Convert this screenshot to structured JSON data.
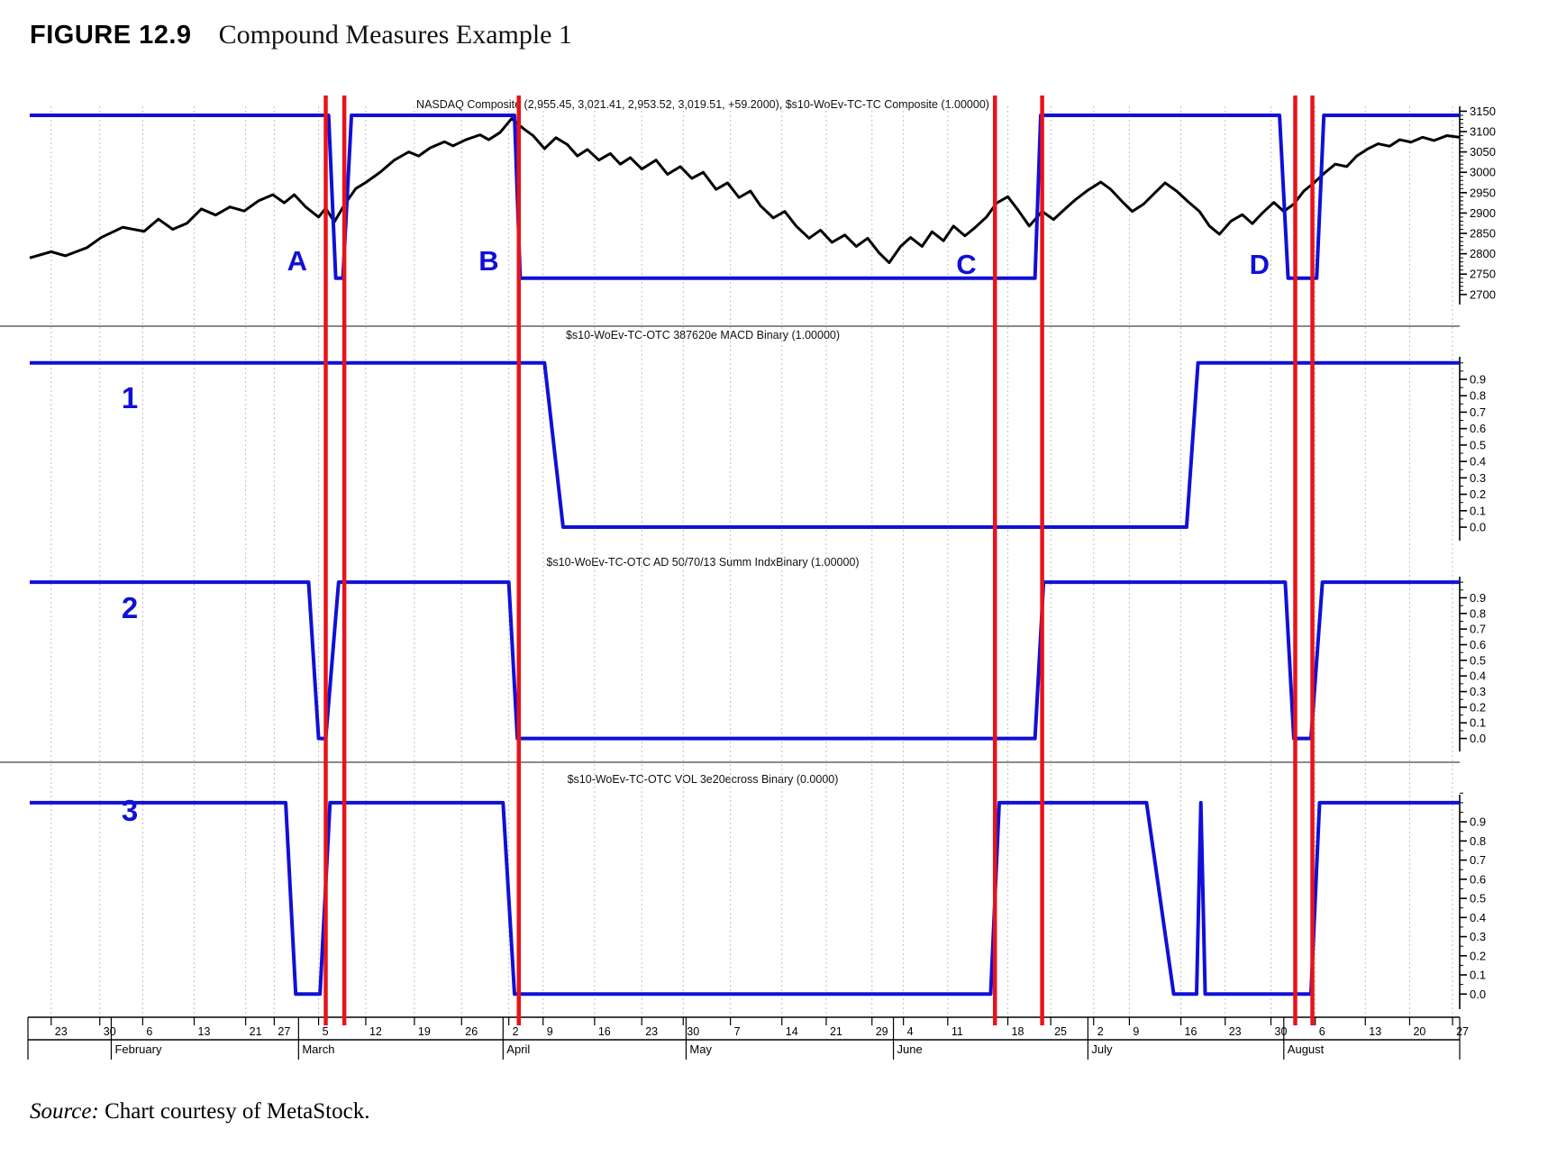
{
  "title": {
    "figure_label": "FIGURE 12.9",
    "text": "Compound Measures Example 1"
  },
  "source": {
    "prefix": "Source:",
    "text": " Chart courtesy of MetaStock."
  },
  "colors": {
    "line_blue": "#1010d6",
    "line_red": "#e8131a",
    "price_black": "#000000",
    "grid_gray": "#bfbfbf",
    "separator": "#444444",
    "axis_black": "#000000"
  },
  "chart_data": {
    "type": "line",
    "panels": [
      {
        "id": "price",
        "label": "NASDAQ Composite (2,955.45, 3,021.41, 2,953.52, 3,019.51, +59.2000), $s10-WoEv-TC-TC Composite  (1.00000)",
        "marker": "",
        "ylim": [
          2700,
          3150
        ],
        "price_ticks": [
          3150,
          3100,
          3050,
          3000,
          2950,
          2900,
          2850,
          2800,
          2750,
          2700
        ],
        "composite_on_value": 3140,
        "composite_off_value": 2740,
        "nasdaq": [
          [
            0,
            2790
          ],
          [
            1.5,
            2805
          ],
          [
            2.5,
            2795
          ],
          [
            4,
            2815
          ],
          [
            5,
            2840
          ],
          [
            6.5,
            2865
          ],
          [
            8,
            2855
          ],
          [
            9,
            2885
          ],
          [
            10,
            2860
          ],
          [
            11,
            2875
          ],
          [
            12,
            2910
          ],
          [
            13,
            2895
          ],
          [
            14,
            2915
          ],
          [
            15,
            2905
          ],
          [
            16,
            2930
          ],
          [
            17,
            2945
          ],
          [
            17.8,
            2925
          ],
          [
            18.5,
            2945
          ],
          [
            19.3,
            2915
          ],
          [
            20.2,
            2890
          ],
          [
            20.7,
            2912
          ],
          [
            21.3,
            2878
          ],
          [
            22,
            2920
          ],
          [
            22.8,
            2960
          ],
          [
            23.5,
            2975
          ],
          [
            24.5,
            3000
          ],
          [
            25.5,
            3030
          ],
          [
            26.5,
            3050
          ],
          [
            27.2,
            3040
          ],
          [
            28,
            3060
          ],
          [
            29,
            3075
          ],
          [
            29.6,
            3065
          ],
          [
            30.5,
            3080
          ],
          [
            31.5,
            3092
          ],
          [
            32.1,
            3080
          ],
          [
            32.9,
            3098
          ],
          [
            33.7,
            3132
          ],
          [
            34.5,
            3108
          ],
          [
            35.2,
            3090
          ],
          [
            36,
            3058
          ],
          [
            36.8,
            3085
          ],
          [
            37.6,
            3068
          ],
          [
            38.3,
            3040
          ],
          [
            39,
            3056
          ],
          [
            39.8,
            3030
          ],
          [
            40.6,
            3046
          ],
          [
            41.3,
            3020
          ],
          [
            42,
            3036
          ],
          [
            42.8,
            3008
          ],
          [
            43.8,
            3030
          ],
          [
            44.6,
            2995
          ],
          [
            45.5,
            3014
          ],
          [
            46.3,
            2985
          ],
          [
            47.1,
            3000
          ],
          [
            48,
            2958
          ],
          [
            48.8,
            2974
          ],
          [
            49.6,
            2938
          ],
          [
            50.4,
            2954
          ],
          [
            51.1,
            2918
          ],
          [
            52,
            2888
          ],
          [
            52.8,
            2904
          ],
          [
            53.6,
            2868
          ],
          [
            54.5,
            2838
          ],
          [
            55.3,
            2858
          ],
          [
            56.1,
            2828
          ],
          [
            57,
            2846
          ],
          [
            57.8,
            2818
          ],
          [
            58.6,
            2838
          ],
          [
            59.4,
            2802
          ],
          [
            60.1,
            2778
          ],
          [
            60.9,
            2818
          ],
          [
            61.6,
            2840
          ],
          [
            62.4,
            2818
          ],
          [
            63.1,
            2854
          ],
          [
            63.9,
            2832
          ],
          [
            64.6,
            2868
          ],
          [
            65.4,
            2844
          ],
          [
            66.1,
            2864
          ],
          [
            66.9,
            2890
          ],
          [
            67.6,
            2924
          ],
          [
            68.4,
            2940
          ],
          [
            69.1,
            2908
          ],
          [
            69.9,
            2868
          ],
          [
            70.8,
            2904
          ],
          [
            71.6,
            2884
          ],
          [
            72.4,
            2910
          ],
          [
            73.1,
            2932
          ],
          [
            74,
            2956
          ],
          [
            74.9,
            2976
          ],
          [
            75.6,
            2958
          ],
          [
            76.4,
            2928
          ],
          [
            77.1,
            2904
          ],
          [
            77.9,
            2922
          ],
          [
            78.7,
            2950
          ],
          [
            79.4,
            2974
          ],
          [
            80.2,
            2954
          ],
          [
            81,
            2928
          ],
          [
            81.8,
            2904
          ],
          [
            82.5,
            2868
          ],
          [
            83.2,
            2848
          ],
          [
            84,
            2880
          ],
          [
            84.8,
            2896
          ],
          [
            85.5,
            2874
          ],
          [
            86.2,
            2900
          ],
          [
            87,
            2926
          ],
          [
            87.7,
            2904
          ],
          [
            88.4,
            2922
          ],
          [
            89.1,
            2954
          ],
          [
            89.8,
            2974
          ],
          [
            90.6,
            3000
          ],
          [
            91.3,
            3020
          ],
          [
            92.1,
            3014
          ],
          [
            92.8,
            3040
          ],
          [
            93.6,
            3058
          ],
          [
            94.3,
            3070
          ],
          [
            95.1,
            3064
          ],
          [
            95.8,
            3080
          ],
          [
            96.6,
            3074
          ],
          [
            97.4,
            3086
          ],
          [
            98.2,
            3078
          ],
          [
            99.1,
            3090
          ],
          [
            100,
            3086
          ]
        ],
        "composite_steps": [
          [
            0,
            1
          ],
          [
            20.9,
            1
          ],
          [
            21.4,
            0
          ],
          [
            21.9,
            0
          ],
          [
            22.5,
            1
          ],
          [
            33.9,
            1
          ],
          [
            34.3,
            0
          ],
          [
            70.3,
            0
          ],
          [
            70.7,
            1
          ],
          [
            87.4,
            1
          ],
          [
            88.0,
            0
          ],
          [
            90.0,
            0
          ],
          [
            90.5,
            1
          ],
          [
            100,
            1
          ]
        ]
      },
      {
        "id": "macd",
        "label": "$s10-WoEv-TC-OTC 387620e MACD Binary  (1.00000)",
        "marker": "1",
        "ylim": [
          0.0,
          1.0
        ],
        "steps": [
          [
            0,
            1
          ],
          [
            36.0,
            1
          ],
          [
            37.3,
            0
          ],
          [
            80.9,
            0
          ],
          [
            81.7,
            1
          ],
          [
            100,
            1
          ]
        ]
      },
      {
        "id": "ad_summ",
        "label": "$s10-WoEv-TC-OTC AD 50/70/13 Summ IndxBinary  (1.00000)",
        "marker": "2",
        "ylim": [
          0.0,
          1.0
        ],
        "steps": [
          [
            0,
            1
          ],
          [
            19.5,
            1
          ],
          [
            20.2,
            0
          ],
          [
            20.7,
            0
          ],
          [
            21.6,
            1
          ],
          [
            33.5,
            1
          ],
          [
            34.1,
            0
          ],
          [
            70.3,
            0
          ],
          [
            70.9,
            1
          ],
          [
            87.8,
            1
          ],
          [
            88.4,
            0
          ],
          [
            89.6,
            0
          ],
          [
            90.4,
            1
          ],
          [
            100,
            1
          ]
        ]
      },
      {
        "id": "vol",
        "label": "$s10-WoEv-TC-OTC VOL 3e20ecross Binary  (0.0000)",
        "marker": "3",
        "ylim": [
          0.0,
          1.0
        ],
        "steps": [
          [
            0,
            1
          ],
          [
            17.9,
            1
          ],
          [
            18.6,
            0
          ],
          [
            20.3,
            0
          ],
          [
            21.0,
            1
          ],
          [
            33.1,
            1
          ],
          [
            33.9,
            0
          ],
          [
            67.2,
            0
          ],
          [
            67.8,
            1
          ],
          [
            78.1,
            1
          ],
          [
            80.0,
            0
          ],
          [
            81.6,
            0
          ],
          [
            81.9,
            1
          ],
          [
            82.2,
            0
          ],
          [
            89.6,
            0
          ],
          [
            90.2,
            1
          ],
          [
            100,
            1
          ]
        ]
      }
    ],
    "binary_yticks": [
      "0.9",
      "0.8",
      "0.7",
      "0.6",
      "0.5",
      "0.4",
      "0.3",
      "0.2",
      "0.1",
      "0.0"
    ],
    "x_axis": {
      "day_ticks": [
        {
          "label": "23",
          "frac": 1.5
        },
        {
          "label": "30",
          "frac": 4.9
        },
        {
          "label": "6",
          "frac": 7.9
        },
        {
          "label": "13",
          "frac": 11.5
        },
        {
          "label": "21",
          "frac": 15.1
        },
        {
          "label": "27",
          "frac": 17.1
        },
        {
          "label": "5",
          "frac": 20.2
        },
        {
          "label": "12",
          "frac": 23.5
        },
        {
          "label": "19",
          "frac": 26.9
        },
        {
          "label": "26",
          "frac": 30.2
        },
        {
          "label": "2",
          "frac": 33.5
        },
        {
          "label": "9",
          "frac": 35.9
        },
        {
          "label": "16",
          "frac": 39.5
        },
        {
          "label": "23",
          "frac": 42.8
        },
        {
          "label": "30",
          "frac": 45.7
        },
        {
          "label": "7",
          "frac": 49.0
        },
        {
          "label": "14",
          "frac": 52.6
        },
        {
          "label": "21",
          "frac": 55.7
        },
        {
          "label": "29",
          "frac": 58.9
        },
        {
          "label": "4",
          "frac": 61.1
        },
        {
          "label": "11",
          "frac": 64.2
        },
        {
          "label": "18",
          "frac": 68.4
        },
        {
          "label": "25",
          "frac": 71.4
        },
        {
          "label": "2",
          "frac": 74.4
        },
        {
          "label": "9",
          "frac": 76.9
        },
        {
          "label": "16",
          "frac": 80.5
        },
        {
          "label": "23",
          "frac": 83.6
        },
        {
          "label": "30",
          "frac": 86.8
        },
        {
          "label": "6",
          "frac": 89.9
        },
        {
          "label": "13",
          "frac": 93.4
        },
        {
          "label": "20",
          "frac": 96.5
        },
        {
          "label": "27",
          "frac": 99.5
        }
      ],
      "months": [
        {
          "label": "February",
          "frac": 5.7
        },
        {
          "label": "March",
          "frac": 18.8
        },
        {
          "label": "April",
          "frac": 33.1
        },
        {
          "label": "May",
          "frac": 45.9
        },
        {
          "label": "June",
          "frac": 60.4
        },
        {
          "label": "July",
          "frac": 74.0
        },
        {
          "label": "August",
          "frac": 87.7
        }
      ]
    },
    "red_lines": [
      20.7,
      22.0,
      34.2,
      67.5,
      70.8,
      88.5,
      89.7
    ],
    "letters": [
      {
        "label": "A",
        "frac": 18.7
      },
      {
        "label": "B",
        "frac": 32.1
      },
      {
        "label": "C",
        "frac": 65.5
      },
      {
        "label": "D",
        "frac": 86.0
      }
    ]
  }
}
